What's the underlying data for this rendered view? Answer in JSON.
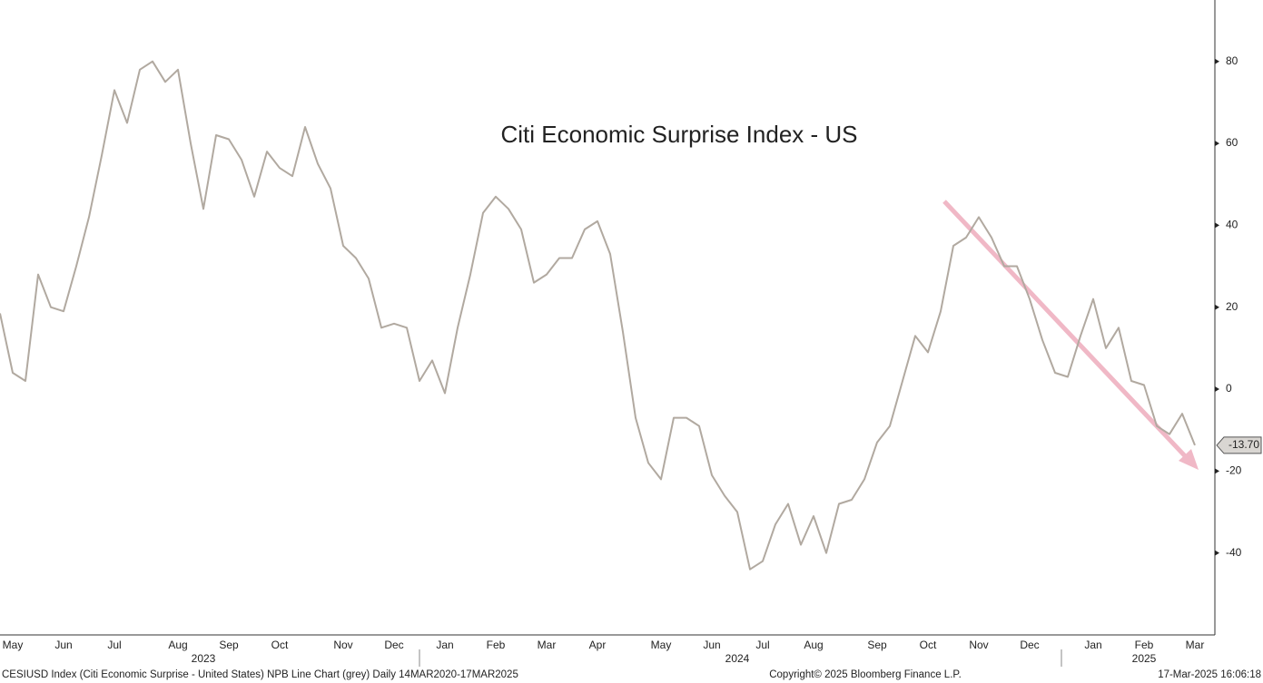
{
  "chart_data": {
    "type": "line",
    "title": "Citi Economic Surprise Index - US",
    "categories": [
      null,
      "May",
      null,
      null,
      null,
      "Jun",
      null,
      null,
      null,
      "Jul",
      null,
      null,
      null,
      null,
      "Aug",
      null,
      null,
      null,
      "Sep",
      null,
      null,
      null,
      "Oct",
      null,
      null,
      null,
      null,
      "Nov",
      null,
      null,
      null,
      "Dec",
      null,
      null,
      null,
      "Jan",
      null,
      null,
      null,
      "Feb",
      null,
      null,
      null,
      "Mar",
      null,
      null,
      null,
      "Apr",
      null,
      null,
      null,
      null,
      "May",
      null,
      null,
      null,
      "Jun",
      null,
      null,
      null,
      "Jul",
      null,
      null,
      null,
      "Aug",
      null,
      null,
      null,
      null,
      "Sep",
      null,
      null,
      null,
      "Oct",
      null,
      null,
      null,
      "Nov",
      null,
      null,
      null,
      "Dec",
      null,
      null,
      null,
      null,
      "Jan",
      null,
      null,
      null,
      "Feb",
      null,
      null,
      null,
      "Mar"
    ],
    "years": [
      null,
      null,
      null,
      null,
      null,
      null,
      null,
      null,
      null,
      null,
      null,
      null,
      null,
      null,
      null,
      null,
      "2023",
      null,
      null,
      null,
      null,
      null,
      null,
      null,
      null,
      null,
      null,
      null,
      null,
      null,
      null,
      null,
      null,
      null,
      null,
      null,
      null,
      null,
      null,
      null,
      null,
      null,
      null,
      null,
      null,
      null,
      null,
      null,
      null,
      null,
      null,
      null,
      null,
      null,
      null,
      null,
      null,
      null,
      "2024",
      null,
      null,
      null,
      null,
      null,
      null,
      null,
      null,
      null,
      null,
      null,
      null,
      null,
      null,
      null,
      null,
      null,
      null,
      null,
      null,
      null,
      null,
      null,
      null,
      null,
      null,
      null,
      null,
      null,
      null,
      null,
      "2025",
      null,
      null,
      null,
      null
    ],
    "series": [
      {
        "color": "#b1a9a0",
        "values": [
          18.5,
          4,
          2,
          28,
          20,
          19,
          30,
          42,
          57,
          73,
          65,
          78,
          80,
          75,
          78,
          60,
          44,
          62,
          61,
          56,
          47,
          58,
          54,
          52,
          64,
          55,
          49,
          35,
          32,
          27,
          15,
          16,
          15,
          2,
          7,
          -1,
          15,
          28,
          43,
          47,
          44,
          39,
          26,
          28,
          32,
          32,
          39,
          41,
          33,
          14,
          -7,
          -18,
          -22,
          -7,
          -7,
          -9,
          -21,
          -26,
          -30,
          -44,
          -42,
          -33,
          -28,
          -38,
          -31,
          -40,
          -28,
          -27,
          -22,
          -13,
          -9,
          2,
          13,
          9,
          19,
          35,
          37,
          42,
          37,
          30,
          30,
          22,
          12,
          4,
          3,
          13,
          22,
          10,
          15,
          2,
          1,
          -9,
          -11,
          -6,
          -13.7
        ],
        "value_labels": [
          null,
          null,
          null,
          null,
          null,
          null,
          null,
          null,
          null,
          null,
          null,
          null,
          null,
          null,
          null,
          null,
          null,
          null,
          null,
          null,
          null,
          null,
          null,
          null,
          null,
          null,
          null,
          null,
          null,
          null,
          null,
          null,
          null,
          null,
          null,
          null,
          null,
          null,
          null,
          null,
          null,
          null,
          null,
          null,
          null,
          null,
          null,
          null,
          null,
          null,
          null,
          null,
          null,
          null,
          null,
          null,
          null,
          null,
          null,
          null,
          null,
          null,
          null,
          null,
          null,
          null,
          null,
          null,
          null,
          null,
          null,
          null,
          null,
          null,
          null,
          null,
          null,
          null,
          null,
          null,
          null,
          null,
          null,
          null,
          null,
          null,
          null,
          null,
          null,
          null,
          null,
          null,
          null,
          null,
          "-13.70"
        ]
      }
    ],
    "ylim": [
      -60,
      95
    ],
    "yticks": [
      80,
      60,
      40,
      20,
      0,
      -20,
      -40
    ],
    "footer_left": "CESIUSD Index (Citi Economic Surprise - United States) NPB Line Chart (grey)  Daily 14MAR2020-17MAR2025",
    "footer_center": "Copyright© 2025 Bloomberg Finance L.P.",
    "footer_right": "17-Mar-2025 16:06:18"
  }
}
